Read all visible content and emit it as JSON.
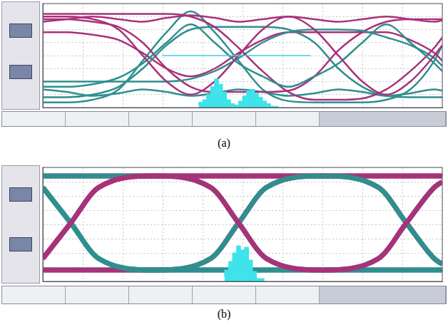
{
  "chart_data": [
    {
      "type": "line",
      "caption": "(a)",
      "grid": true,
      "tick_labels": false,
      "xlim": [
        0,
        10
      ],
      "xticks": [
        0,
        1,
        2,
        3,
        4,
        5,
        6,
        7,
        8,
        9,
        10
      ],
      "ylim": [
        0,
        8
      ],
      "yticks": [
        0,
        1,
        2,
        3,
        4,
        5,
        6,
        7,
        8
      ],
      "x": [
        0,
        0.6,
        1.25,
        1.9,
        2.5,
        3.1,
        3.7,
        4.3,
        4.9,
        5.5,
        6.15,
        6.8,
        7.4,
        8.0,
        8.6,
        9.2,
        9.8,
        10
      ],
      "series": [
        {
          "color": "#a8327a",
          "values": [
            7.0,
            7.0,
            6.8,
            6.0,
            4.0,
            2.0,
            1.0,
            2.0,
            4.0,
            6.0,
            7.0,
            6.0,
            4.0,
            2.0,
            1.0,
            2.0,
            4.0,
            4.8
          ]
        },
        {
          "color": "#2f8f8f",
          "values": [
            1.6,
            1.6,
            1.8,
            2.3,
            3.4,
            5.0,
            6.4,
            5.0,
            3.4,
            2.4,
            1.6,
            2.4,
            3.4,
            5.0,
            6.4,
            5.0,
            3.4,
            2.8
          ]
        },
        {
          "color": "#a8327a",
          "values": [
            7.2,
            7.2,
            7.2,
            7.2,
            7.2,
            7.2,
            7.0,
            6.2,
            4.6,
            2.8,
            1.2,
            0.6,
            0.6,
            0.7,
            1.4,
            2.8,
            4.6,
            5.4
          ]
        },
        {
          "color": "#2f8f8f",
          "values": [
            2.0,
            2.0,
            2.0,
            2.0,
            2.0,
            2.0,
            2.2,
            2.8,
            3.8,
            5.0,
            5.8,
            6.0,
            6.0,
            5.9,
            5.4,
            4.8,
            3.8,
            3.2
          ]
        },
        {
          "color": "#a8327a",
          "values": [
            6.8,
            6.8,
            6.6,
            6.2,
            5.0,
            3.0,
            1.6,
            1.2,
            1.2,
            1.2,
            1.3,
            2.4,
            4.4,
            5.8,
            6.6,
            6.8,
            6.8,
            6.8
          ]
        },
        {
          "color": "#2f8f8f",
          "values": [
            0.8,
            0.8,
            1.0,
            1.6,
            3.0,
            4.8,
            6.0,
            6.2,
            6.2,
            6.2,
            6.0,
            5.0,
            3.0,
            1.6,
            0.9,
            0.8,
            0.8,
            0.8
          ]
        },
        {
          "color": "#a8327a",
          "values": [
            6.6,
            6.8,
            7.0,
            6.8,
            6.6,
            6.9,
            7.1,
            6.9,
            6.6,
            6.8,
            7.0,
            6.8,
            6.6,
            6.8,
            7.0,
            6.8,
            6.6,
            6.7
          ]
        },
        {
          "color": "#2f8f8f",
          "values": [
            1.4,
            1.2,
            0.9,
            1.1,
            1.4,
            1.2,
            0.9,
            1.1,
            1.4,
            1.2,
            0.9,
            1.1,
            1.4,
            1.2,
            0.9,
            1.1,
            1.4,
            1.3
          ]
        },
        {
          "color": "#a8327a",
          "values": [
            5.8,
            5.8,
            5.6,
            5.2,
            4.2,
            3.0,
            2.4,
            3.0,
            4.2,
            5.2,
            5.8,
            5.8,
            5.8,
            5.8,
            5.8,
            5.2,
            4.2,
            3.6
          ]
        },
        {
          "color": "#2f8f8f",
          "values": [
            0.4,
            0.4,
            0.6,
            1.4,
            3.6,
            5.8,
            7.4,
            5.8,
            3.6,
            1.4,
            0.5,
            0.4,
            0.4,
            0.4,
            0.6,
            1.4,
            3.6,
            4.8
          ]
        }
      ],
      "histogram": {
        "color": "#3fe3ea",
        "bins": [
          3.9,
          4.0,
          4.1,
          4.2,
          4.3,
          4.4,
          4.5,
          4.6,
          4.7,
          4.8,
          4.9,
          5.0,
          5.1,
          5.2,
          5.3,
          5.4,
          5.5,
          5.6,
          5.7,
          5.8,
          5.9
        ],
        "counts": [
          0.2,
          0.4,
          0.6,
          1.0,
          1.6,
          2.2,
          1.8,
          1.2,
          0.6,
          0.3,
          0.2,
          0.5,
          0.9,
          1.3,
          1.4,
          1.1,
          0.8,
          0.5,
          0.3,
          0.1
        ]
      },
      "cursor": {
        "color": "#3fd0e0",
        "x": [
          3.0,
          6.7
        ],
        "y": 4.0
      }
    },
    {
      "type": "line",
      "caption": "(b)",
      "grid": true,
      "tick_labels": false,
      "xlim": [
        0,
        10
      ],
      "xticks": [
        0,
        1,
        2,
        3,
        4,
        5,
        6,
        7,
        8,
        9,
        10
      ],
      "ylim": [
        0,
        8
      ],
      "yticks": [
        0,
        1,
        2,
        3,
        4,
        5,
        6,
        7,
        8
      ],
      "x": [
        0,
        0.7,
        1.4,
        2.8,
        4.2,
        4.9,
        5.6,
        7.0,
        8.4,
        9.1,
        9.8,
        10
      ],
      "series": [
        {
          "color": "#a8327a",
          "values": [
            1.6,
            4.1,
            6.6,
            7.4,
            6.6,
            4.1,
            1.6,
            0.8,
            1.6,
            4.1,
            6.6,
            7.0
          ]
        },
        {
          "color": "#2f8f8f",
          "values": [
            6.6,
            4.1,
            1.6,
            0.8,
            1.6,
            4.1,
            6.6,
            7.4,
            6.6,
            4.1,
            1.6,
            1.2
          ]
        },
        {
          "color": "#a8327a",
          "values": [
            1.6,
            4.1,
            6.6,
            7.4,
            7.4,
            7.4,
            7.4,
            7.4,
            6.6,
            4.1,
            1.6,
            1.2
          ]
        },
        {
          "color": "#2f8f8f",
          "values": [
            6.6,
            4.1,
            1.6,
            0.8,
            0.8,
            0.8,
            0.8,
            0.8,
            1.6,
            4.1,
            6.6,
            7.0
          ]
        },
        {
          "color": "#a8327a",
          "values": [
            0.8,
            0.8,
            0.8,
            0.8,
            1.6,
            4.1,
            6.6,
            7.4,
            7.4,
            7.4,
            7.4,
            7.4
          ]
        },
        {
          "color": "#2f8f8f",
          "values": [
            7.4,
            7.4,
            7.4,
            7.4,
            6.6,
            4.1,
            1.6,
            0.8,
            0.8,
            0.8,
            0.8,
            0.8
          ]
        },
        {
          "color": "#a8327a",
          "values": [
            7.4,
            7.4,
            7.4,
            7.4,
            7.4,
            7.4,
            7.4,
            7.4,
            7.4,
            7.4,
            7.4,
            7.4
          ]
        },
        {
          "color": "#2f8f8f",
          "values": [
            0.8,
            0.8,
            0.8,
            0.8,
            0.8,
            0.8,
            0.8,
            0.8,
            0.8,
            0.8,
            0.8,
            0.8
          ]
        }
      ],
      "histogram": {
        "color": "#3fe3ea",
        "bins": [
          4.55,
          4.65,
          4.75,
          4.85,
          4.95,
          5.05,
          5.15,
          5.25,
          5.35,
          5.45,
          5.55
        ],
        "counts": [
          0.3,
          0.8,
          1.4,
          2.0,
          2.5,
          2.2,
          2.4,
          1.5,
          0.7,
          0.2
        ]
      }
    }
  ]
}
